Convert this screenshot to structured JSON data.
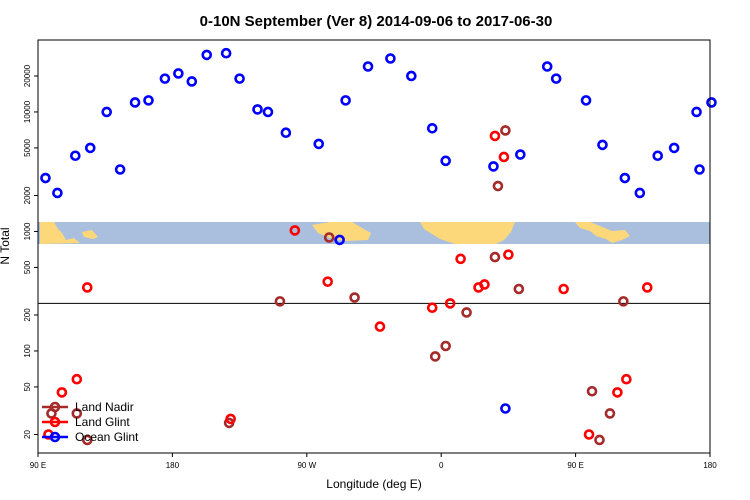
{
  "chart_data": {
    "type": "scatter",
    "title": "0-10N September (Ver 8)   2014-09-06 to 2017-06-30",
    "xlabel": "Longitude (deg E)",
    "ylabel": "N Total",
    "x_ticks": [
      {
        "value": 90,
        "label": "90 E"
      },
      {
        "value": 180,
        "label": "180"
      },
      {
        "value": 270,
        "label": "90 W"
      },
      {
        "value": 360,
        "label": "0"
      },
      {
        "value": 450,
        "label": "90 E"
      },
      {
        "value": 540,
        "label": "180"
      }
    ],
    "xlim": [
      90,
      540
    ],
    "y_ticks": [
      20,
      50,
      100,
      200,
      500,
      1000,
      2000,
      5000,
      10000,
      20000
    ],
    "ylim": [
      14,
      40000
    ],
    "log_scale": "y",
    "reference_line": 250,
    "legend_position": "bottom-left",
    "colors": {
      "land_nadir": "#a52a2a",
      "land_glint": "#ff0000",
      "ocean_glint": "#0000ff",
      "map_ocean": "#a9bfdd",
      "map_land": "#fdd87a"
    },
    "series": [
      {
        "name": "Land Nadir",
        "color": "#a52a2a",
        "x": [
          99,
          116,
          123,
          218,
          252,
          285,
          302,
          356,
          363,
          377,
          396,
          398,
          403,
          412,
          461,
          466,
          473,
          482
        ],
        "y": [
          30,
          30,
          18,
          25,
          260,
          890,
          280,
          90,
          110,
          210,
          610,
          2400,
          7000,
          330,
          46,
          18,
          30,
          260
        ]
      },
      {
        "name": "Land Glint",
        "color": "#ff0000",
        "x": [
          97,
          106,
          116,
          123,
          219,
          262,
          284,
          319,
          354,
          366,
          373,
          385,
          389,
          396,
          402,
          405,
          442,
          459,
          478,
          484,
          498
        ],
        "y": [
          20,
          45,
          58,
          340,
          27,
          1020,
          380,
          160,
          230,
          250,
          590,
          340,
          360,
          6300,
          4200,
          640,
          330,
          20,
          45,
          58,
          340
        ]
      },
      {
        "name": "Ocean Glint",
        "color": "#0000ff",
        "x": [
          95,
          103,
          115,
          125,
          136,
          145,
          155,
          164,
          175,
          184,
          193,
          203,
          216,
          225,
          237,
          244,
          256,
          278,
          292,
          296,
          311,
          326,
          340,
          354,
          363,
          395,
          403,
          413,
          431,
          437,
          457,
          468,
          483,
          493,
          505,
          516,
          531,
          533,
          541
        ],
        "y": [
          2800,
          2100,
          4300,
          5000,
          10000,
          3300,
          12000,
          12500,
          19000,
          21000,
          18000,
          30000,
          31000,
          19000,
          10500,
          10000,
          6700,
          5400,
          850,
          12500,
          24000,
          28000,
          20000,
          7300,
          3900,
          3500,
          33,
          4400,
          24000,
          19000,
          12500,
          5300,
          2800,
          2100,
          4300,
          5000,
          10000,
          3300,
          12000
        ]
      }
    ]
  }
}
